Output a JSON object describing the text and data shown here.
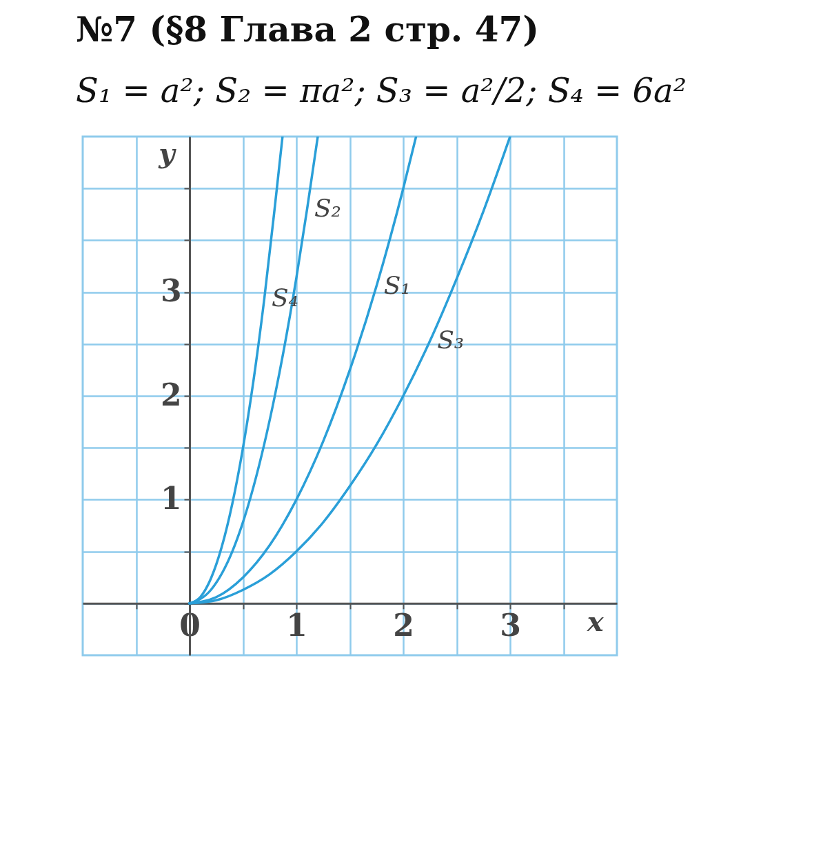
{
  "chart_data": {
    "type": "line",
    "title": "№7 (§8 Глава 2  стр. 47)",
    "subtitle": "S₁ = a²;  S₂ = πa²;  S₃ = a²/2;  S₄ = 6a²",
    "xlabel": "x",
    "ylabel": "y",
    "xlim": [
      -1,
      4
    ],
    "ylim": [
      -0.5,
      4.5
    ],
    "xticks": [
      {
        "value": -0.5,
        "label": null
      },
      {
        "value": 0,
        "label": "0"
      },
      {
        "value": 0.5,
        "label": null
      },
      1,
      {
        "value": 1.5,
        "label": null
      },
      2,
      {
        "value": 2.5,
        "label": null
      },
      3,
      {
        "value": 3.5,
        "label": null
      }
    ],
    "yticks": [
      {
        "value": 0,
        "label": null
      },
      {
        "value": 0.5,
        "label": null
      },
      1,
      {
        "value": 1.5,
        "label": null
      },
      2,
      {
        "value": 2.5,
        "label": null
      },
      3,
      {
        "value": 3.5,
        "label": null
      },
      {
        "value": 4,
        "label": null
      }
    ],
    "grid": true,
    "legend": false,
    "line_style": "solid",
    "marker": "none",
    "series": [
      {
        "name": "S₄",
        "color": "#2a9fd8",
        "x": [
          0,
          0.1,
          0.2,
          0.3,
          0.4,
          0.5,
          0.6,
          0.7,
          0.8,
          0.87
        ],
        "values": [
          0,
          0.06,
          0.24,
          0.54,
          0.96,
          1.5,
          2.16,
          2.94,
          3.84,
          4.5
        ]
      },
      {
        "name": "S₂",
        "color": "#2a9fd8",
        "x": [
          0,
          0.2,
          0.4,
          0.6,
          0.8,
          1,
          1.1,
          1.2
        ],
        "values": [
          0,
          0.13,
          0.5,
          1.13,
          2.01,
          3.14,
          3.8,
          4.5
        ]
      },
      {
        "name": "S₁",
        "color": "#2a9fd8",
        "x": [
          0,
          0.25,
          0.5,
          0.75,
          1,
          1.25,
          1.5,
          1.75,
          2,
          2.12
        ],
        "values": [
          0,
          0.06,
          0.25,
          0.56,
          1,
          1.56,
          2.25,
          3.06,
          4,
          4.5
        ]
      },
      {
        "name": "S₃",
        "color": "#2a9fd8",
        "x": [
          0,
          0.25,
          0.5,
          0.75,
          1,
          1.25,
          1.5,
          1.75,
          2,
          2.25,
          2.5,
          2.75,
          3
        ],
        "values": [
          0,
          0.03,
          0.13,
          0.28,
          0.5,
          0.78,
          1.13,
          1.53,
          2,
          2.53,
          3.13,
          3.78,
          4.5
        ]
      }
    ]
  }
}
